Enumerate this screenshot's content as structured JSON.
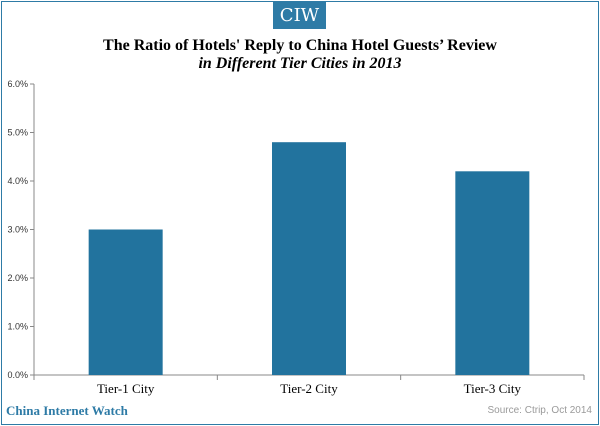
{
  "logo_text": "CIW",
  "footer": {
    "brand": "China Internet Watch",
    "source": "Source: Ctrip, Oct 2014"
  },
  "colors": {
    "bar": "#22739e",
    "accent": "#2e7ba6"
  },
  "chart_data": {
    "type": "bar",
    "title": "The Ratio of Hotels' Reply to China Hotel Guests’ Review",
    "subtitle": "in Different Tier Cities in 2013",
    "categories": [
      "Tier-1 City",
      "Tier-2 City",
      "Tier-3 City"
    ],
    "values": [
      3.0,
      4.8,
      4.2
    ],
    "ylim": [
      0,
      6
    ],
    "yticks": [
      "0.0%",
      "1.0%",
      "2.0%",
      "3.0%",
      "4.0%",
      "5.0%",
      "6.0%"
    ],
    "grid": false,
    "legend": "none",
    "xlabel": "",
    "ylabel": ""
  }
}
